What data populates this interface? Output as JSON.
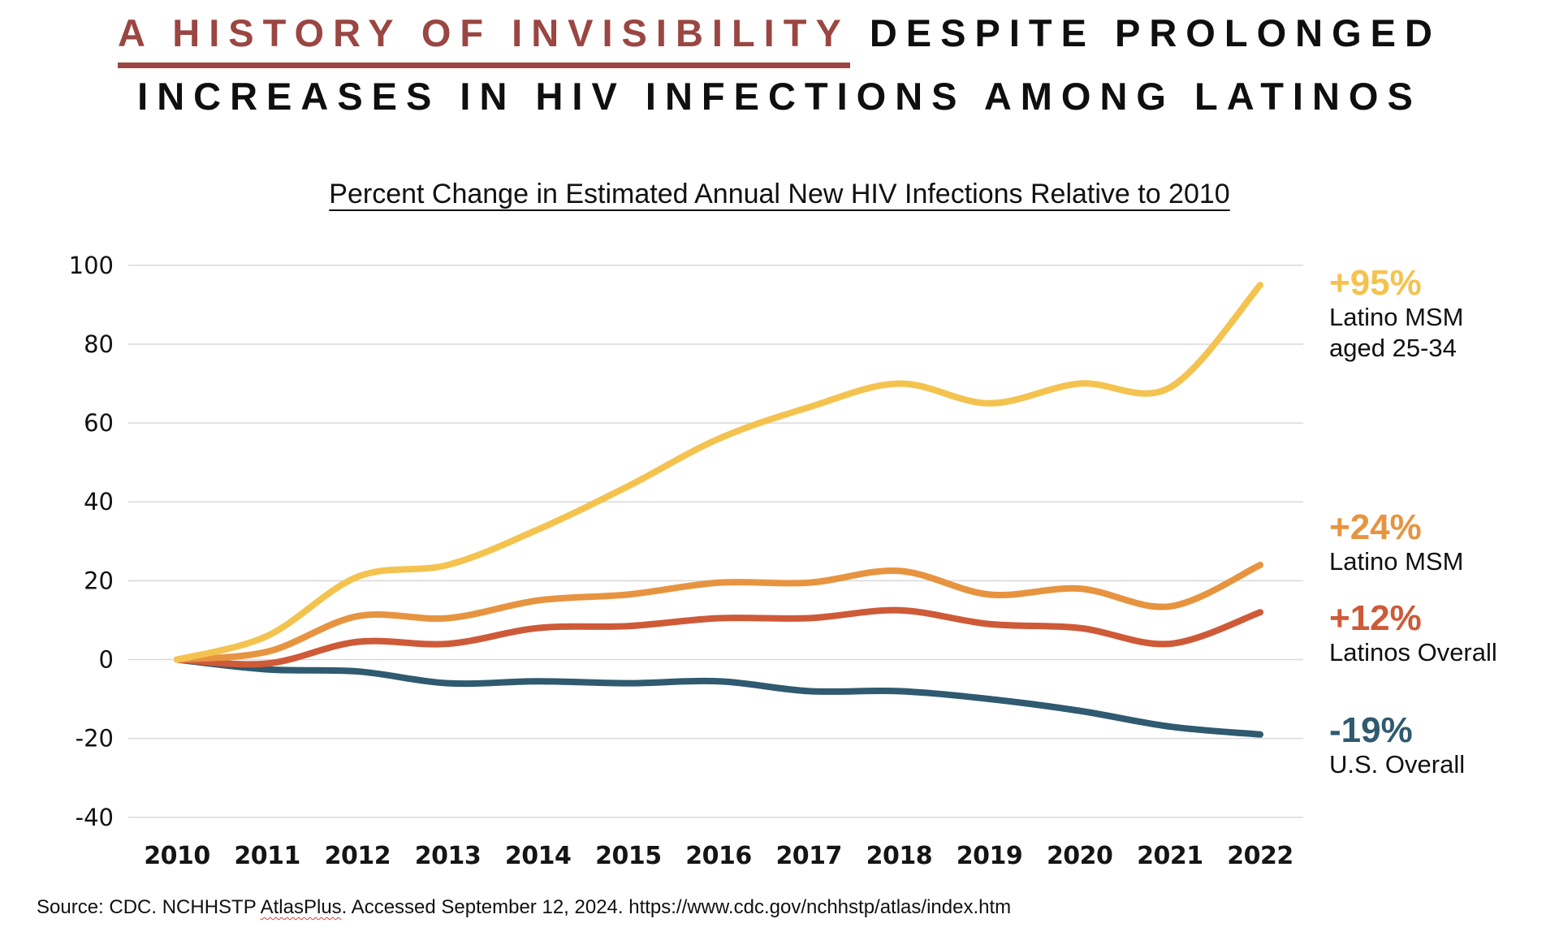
{
  "title": {
    "highlight": "A HISTORY OF INVISIBILITY",
    "rest": " DESPITE PROLONGED",
    "line2": "INCREASES IN HIV INFECTIONS AMONG LATINOS"
  },
  "subtitle": "Percent Change in Estimated Annual New HIV Infections Relative to 2010",
  "colors": {
    "title_highlight": "#9A4642",
    "grid": "#D9D9D9",
    "yellow": "#F4C34F",
    "orange": "#E79440",
    "red": "#CE5A38",
    "blue": "#2F5A70"
  },
  "chart_data": {
    "type": "line",
    "title": "Percent Change in Estimated Annual New HIV Infections Relative to 2010",
    "x": [
      "2010",
      "2011",
      "2012",
      "2013",
      "2014",
      "2015",
      "2016",
      "2017",
      "2018",
      "2019",
      "2020",
      "2021",
      "2022"
    ],
    "series": [
      {
        "name": "Latino MSM aged 25-34",
        "color": "#F4C34F",
        "values": [
          0,
          6,
          21,
          24,
          33,
          44,
          56,
          64,
          70,
          65,
          70,
          69,
          95
        ]
      },
      {
        "name": "Latino MSM",
        "color": "#E79440",
        "values": [
          0,
          2,
          11,
          10.5,
          15,
          16.5,
          19.5,
          19.5,
          22.5,
          16.5,
          18,
          13.5,
          24
        ]
      },
      {
        "name": "Latinos Overall",
        "color": "#CE5A38",
        "values": [
          0,
          -1,
          4.5,
          4,
          8,
          8.5,
          10.5,
          10.5,
          12.5,
          9,
          8,
          4,
          12
        ]
      },
      {
        "name": "U.S. Overall",
        "color": "#2F5A70",
        "values": [
          0,
          -2.5,
          -3,
          -6,
          -5.5,
          -6,
          -5.5,
          -8,
          -8,
          -10,
          -13,
          -17,
          -19
        ]
      }
    ],
    "ylim": [
      -40,
      100
    ],
    "yticks": [
      100,
      80,
      60,
      40,
      20,
      0,
      -20,
      -40
    ],
    "grid": true,
    "legend_position": "right"
  },
  "annotations": [
    {
      "value": "+95%",
      "color": "#F4C34F",
      "line1": "Latino MSM",
      "line2": "aged 25-34"
    },
    {
      "value": "+24%",
      "color": "#E79440",
      "line1": "Latino MSM",
      "line2": ""
    },
    {
      "value": "+12%",
      "color": "#CE5A38",
      "line1": "Latinos Overall",
      "line2": ""
    },
    {
      "value": "-19%",
      "color": "#2F5A70",
      "line1": "U.S. Overall",
      "line2": ""
    }
  ],
  "source": {
    "prefix": "Source: CDC. NCHHSTP ",
    "atlas": "AtlasPlus",
    "suffix": ". Accessed September 12, 2024. https://www.cdc.gov/nchhstp/atlas/index.htm"
  }
}
